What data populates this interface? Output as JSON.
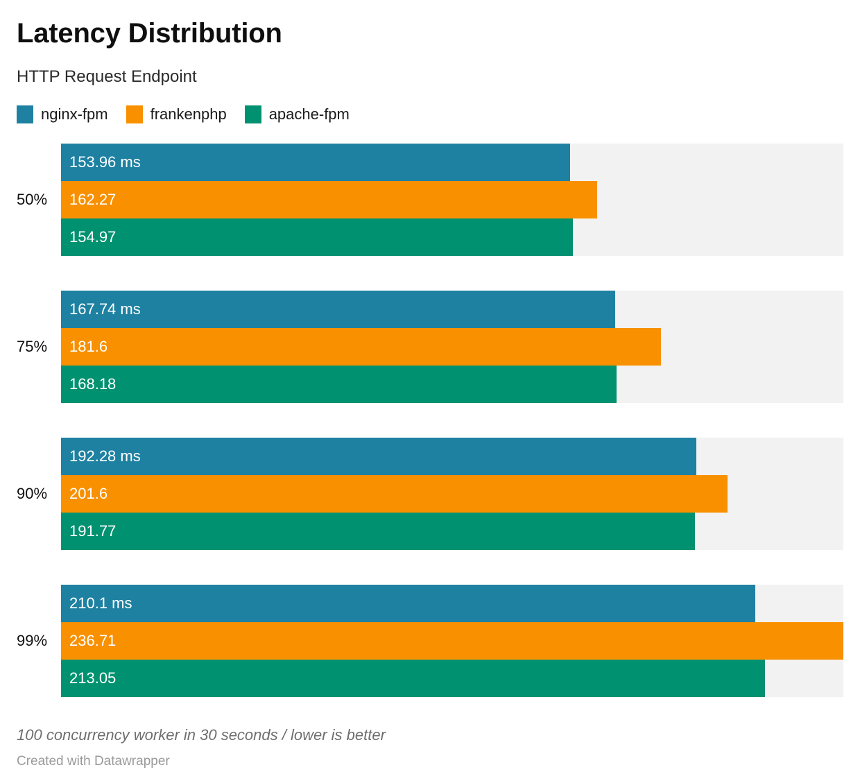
{
  "header": {
    "title": "Latency Distribution",
    "subtitle": "HTTP Request Endpoint"
  },
  "legend": [
    {
      "label": "nginx-fpm",
      "color": "#1e81a2"
    },
    {
      "label": "frankenphp",
      "color": "#f89000"
    },
    {
      "label": "apache-fpm",
      "color": "#009270"
    }
  ],
  "chart_data": {
    "type": "bar",
    "orientation": "horizontal",
    "title": "Latency Distribution",
    "subtitle": "HTTP Request Endpoint",
    "categories": [
      "50%",
      "75%",
      "90%",
      "99%"
    ],
    "series": [
      {
        "name": "nginx-fpm",
        "color": "#1e81a2",
        "values": [
          153.96,
          167.74,
          192.28,
          210.1
        ],
        "labels": [
          "153.96 ms",
          "167.74 ms",
          "192.28 ms",
          "210.1 ms"
        ]
      },
      {
        "name": "frankenphp",
        "color": "#f89000",
        "values": [
          162.27,
          181.6,
          201.6,
          236.71
        ],
        "labels": [
          "162.27",
          "181.6",
          "201.6",
          "236.71"
        ]
      },
      {
        "name": "apache-fpm",
        "color": "#009270",
        "values": [
          154.97,
          168.18,
          191.77,
          213.05
        ],
        "labels": [
          "154.97",
          "168.18",
          "191.77",
          "213.05"
        ]
      }
    ],
    "unit": "ms",
    "xlim": [
      0,
      236.71
    ],
    "value_labels": "inside-start",
    "grid": false,
    "legend_position": "top",
    "track_color": "#f2f2f2"
  },
  "footer": {
    "note": "100 concurrency worker in 30 seconds / lower is better",
    "attribution": "Created with Datawrapper"
  }
}
